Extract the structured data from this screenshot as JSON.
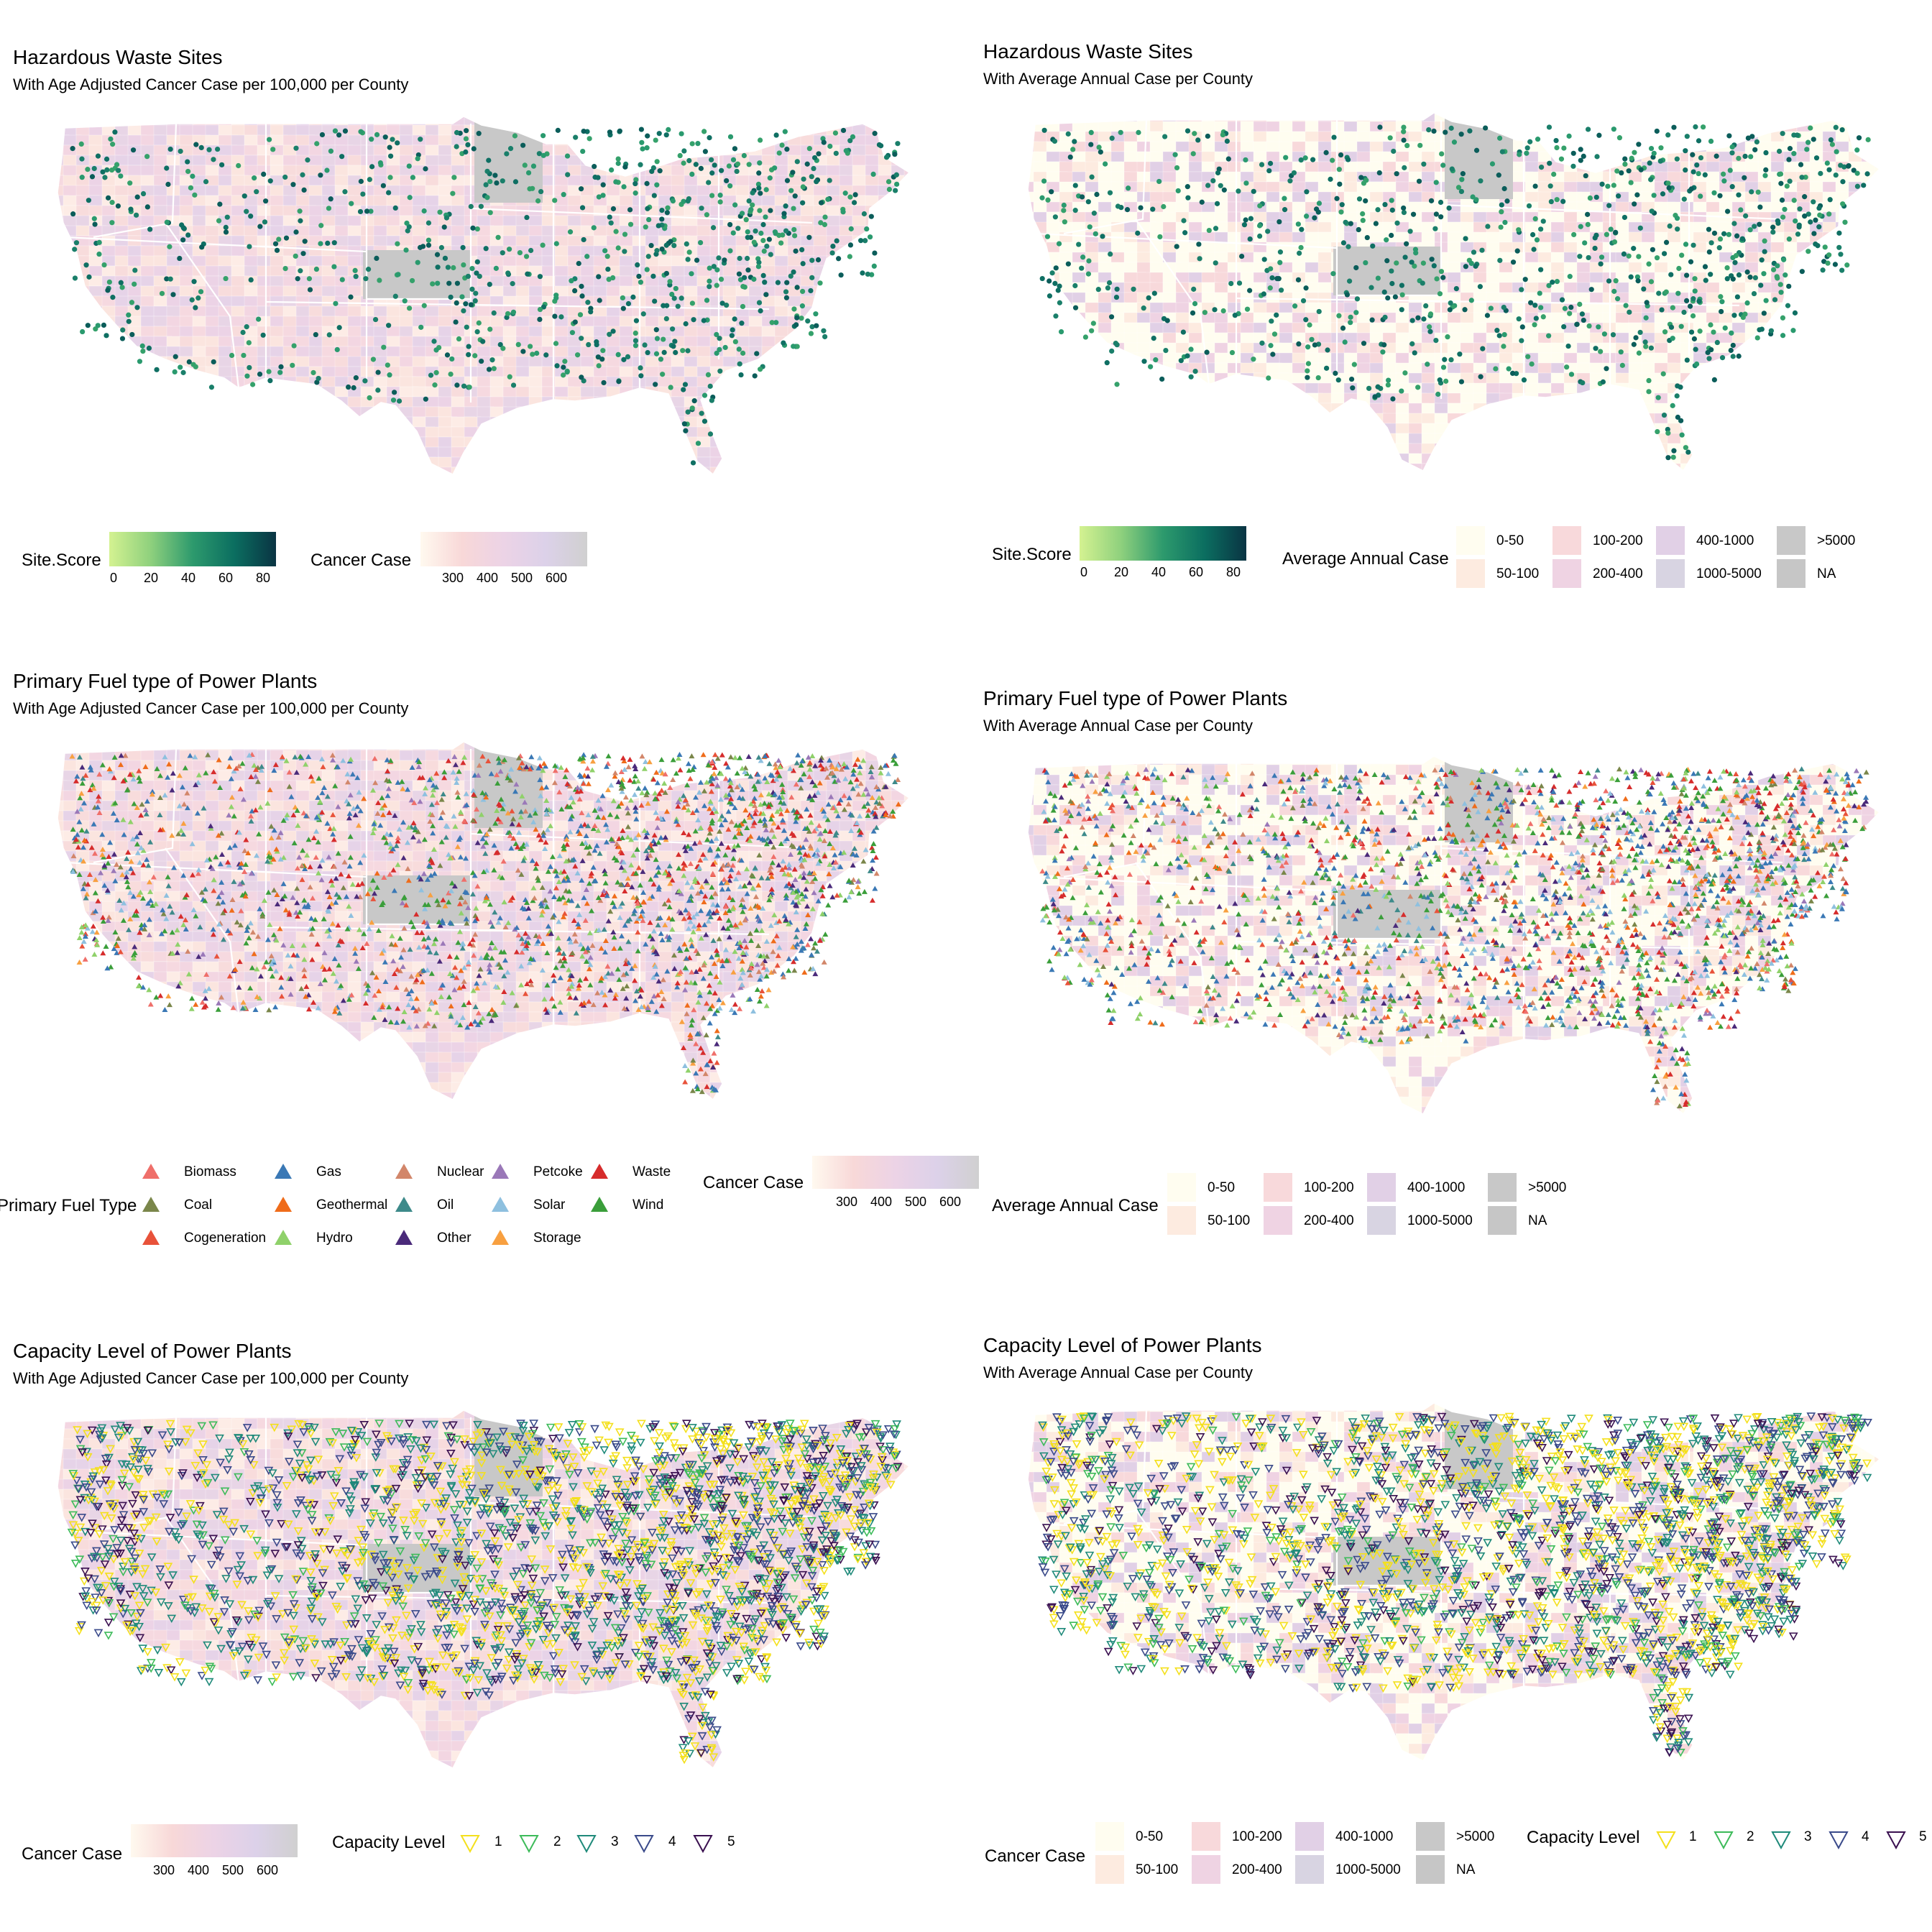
{
  "panels": [
    {
      "title": "Hazardous Waste Sites",
      "subtitle": "With Age Adjusted Cancer Case per 100,000 per County"
    },
    {
      "title": "Hazardous Waste Sites",
      "subtitle": "With Average Annual Case per County"
    },
    {
      "title": "Primary Fuel type of Power Plants",
      "subtitle": "With Age Adjusted Cancer Case per 100,000 per County"
    },
    {
      "title": "Primary Fuel type of Power Plants",
      "subtitle": "With Average Annual Case per County"
    },
    {
      "title": "Capacity Level of Power Plants",
      "subtitle": "With Age Adjusted Cancer Case per 100,000 per County"
    },
    {
      "title": "Capacity Level of Power Plants",
      "subtitle": "With Average Annual Case per County"
    }
  ],
  "legends": {
    "site_score": {
      "title": "Site.Score",
      "ticks": [
        "0",
        "20",
        "40",
        "60",
        "80"
      ],
      "range": [
        0,
        85
      ],
      "colors": [
        "#d4f291",
        "#8ed07d",
        "#2d9a6d",
        "#0b6e60",
        "#0a3443"
      ]
    },
    "cancer_case": {
      "title": "Cancer Case",
      "ticks": [
        "300",
        "400",
        "500",
        "600"
      ],
      "range": [
        250,
        660
      ],
      "colors": [
        "#fff9ef",
        "#f8d8d8",
        "#ecd3e6",
        "#dcd1e9",
        "#d0d0d0"
      ]
    },
    "annual_case": {
      "title": "Average Annual Case",
      "classes": [
        {
          "label": "0-50",
          "color": "#fffdf0"
        },
        {
          "label": "50-100",
          "color": "#fdebe0"
        },
        {
          "label": "100-200",
          "color": "#f8d9db"
        },
        {
          "label": "200-400",
          "color": "#efd3e3"
        },
        {
          "label": "400-1000",
          "color": "#e1d0e6"
        },
        {
          "label": "1000-5000",
          "color": "#d8d4e2"
        },
        {
          "label": ">5000",
          "color": "#c8c8c8"
        },
        {
          "label": "NA",
          "color": "#c6c6c6"
        }
      ]
    },
    "fuel_type": {
      "title": "Primary Fuel Type",
      "items": [
        {
          "label": "Biomass",
          "color": "#ef6f6a"
        },
        {
          "label": "Coal",
          "color": "#7a864a"
        },
        {
          "label": "Cogeneration",
          "color": "#e8523a"
        },
        {
          "label": "Gas",
          "color": "#3a78b5"
        },
        {
          "label": "Geothermal",
          "color": "#ef6c1a"
        },
        {
          "label": "Hydro",
          "color": "#8fd16a"
        },
        {
          "label": "Nuclear",
          "color": "#d2866a"
        },
        {
          "label": "Oil",
          "color": "#3d8a8a"
        },
        {
          "label": "Other",
          "color": "#4a2a7a"
        },
        {
          "label": "Petcoke",
          "color": "#9a78b8"
        },
        {
          "label": "Solar",
          "color": "#8ec0df"
        },
        {
          "label": "Storage",
          "color": "#f8a040"
        },
        {
          "label": "Waste",
          "color": "#d62c2c"
        },
        {
          "label": "Wind",
          "color": "#3a9e3a"
        }
      ]
    },
    "capacity": {
      "title": "Capacity Level",
      "items": [
        {
          "label": "1",
          "color": "#f4e01c"
        },
        {
          "label": "2",
          "color": "#3dbb5a"
        },
        {
          "label": "3",
          "color": "#1f8a7a"
        },
        {
          "label": "4",
          "color": "#3a4a8a"
        },
        {
          "label": "5",
          "color": "#3a1050"
        }
      ]
    }
  }
}
